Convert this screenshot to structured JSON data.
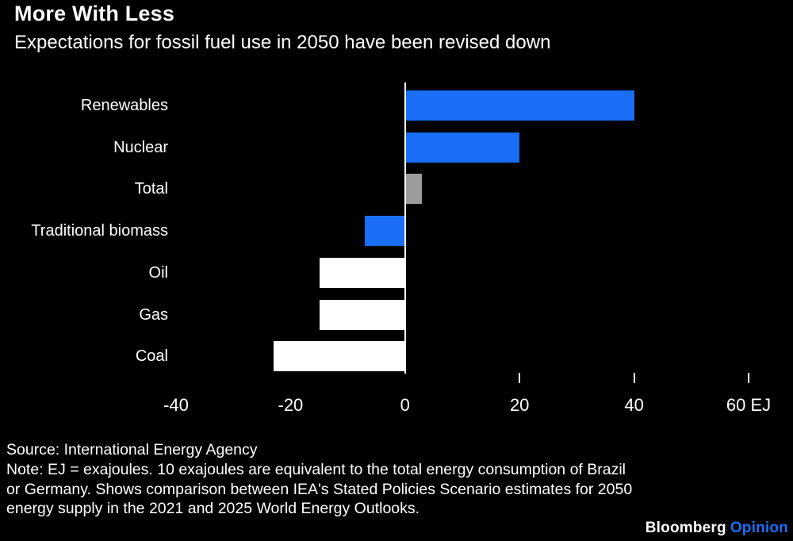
{
  "header": {
    "title": "More With Less",
    "subtitle": "Expectations for fossil fuel use in 2050 have been revised down"
  },
  "chart_data": {
    "type": "bar",
    "orientation": "horizontal",
    "title": "More With Less",
    "subtitle": "Expectations for fossil fuel use in 2050 have been revised down",
    "categories": [
      "Renewables",
      "Nuclear",
      "Total",
      "Traditional biomass",
      "Oil",
      "Gas",
      "Coal"
    ],
    "values": [
      40,
      20,
      3,
      -7,
      -15,
      -15,
      -23
    ],
    "bar_colors": [
      "#1a6df5",
      "#1a6df5",
      "#9c9c9c",
      "#1a6df5",
      "#ffffff",
      "#ffffff",
      "#ffffff"
    ],
    "unit": "EJ",
    "xlim": [
      -40,
      60
    ],
    "x_ticks": [
      -40,
      -20,
      0,
      20,
      40,
      60
    ],
    "x_tick_labels": [
      "-40",
      "-20",
      "0",
      "20",
      "40",
      "60 EJ"
    ],
    "visible_tick_marks": [
      20,
      40,
      60
    ],
    "zero_line": true,
    "grid": false,
    "legend": "none"
  },
  "footer": {
    "source": "Source: International Energy Agency",
    "note": "Note: EJ = exajoules. 10 exajoules are equivalent to the total energy consumption of Brazil or Germany. Shows comparison between IEA's Stated Policies Scenario estimates for 2050 energy supply in the 2021 and 2025 World Energy Outlooks.",
    "brand": {
      "name": "Bloomberg",
      "section": "Opinion"
    }
  },
  "colors": {
    "background": "#000000",
    "text": "#ffffff",
    "accent_blue": "#1a6df5",
    "neutral_gray": "#9c9c9c",
    "bar_white": "#ffffff"
  }
}
